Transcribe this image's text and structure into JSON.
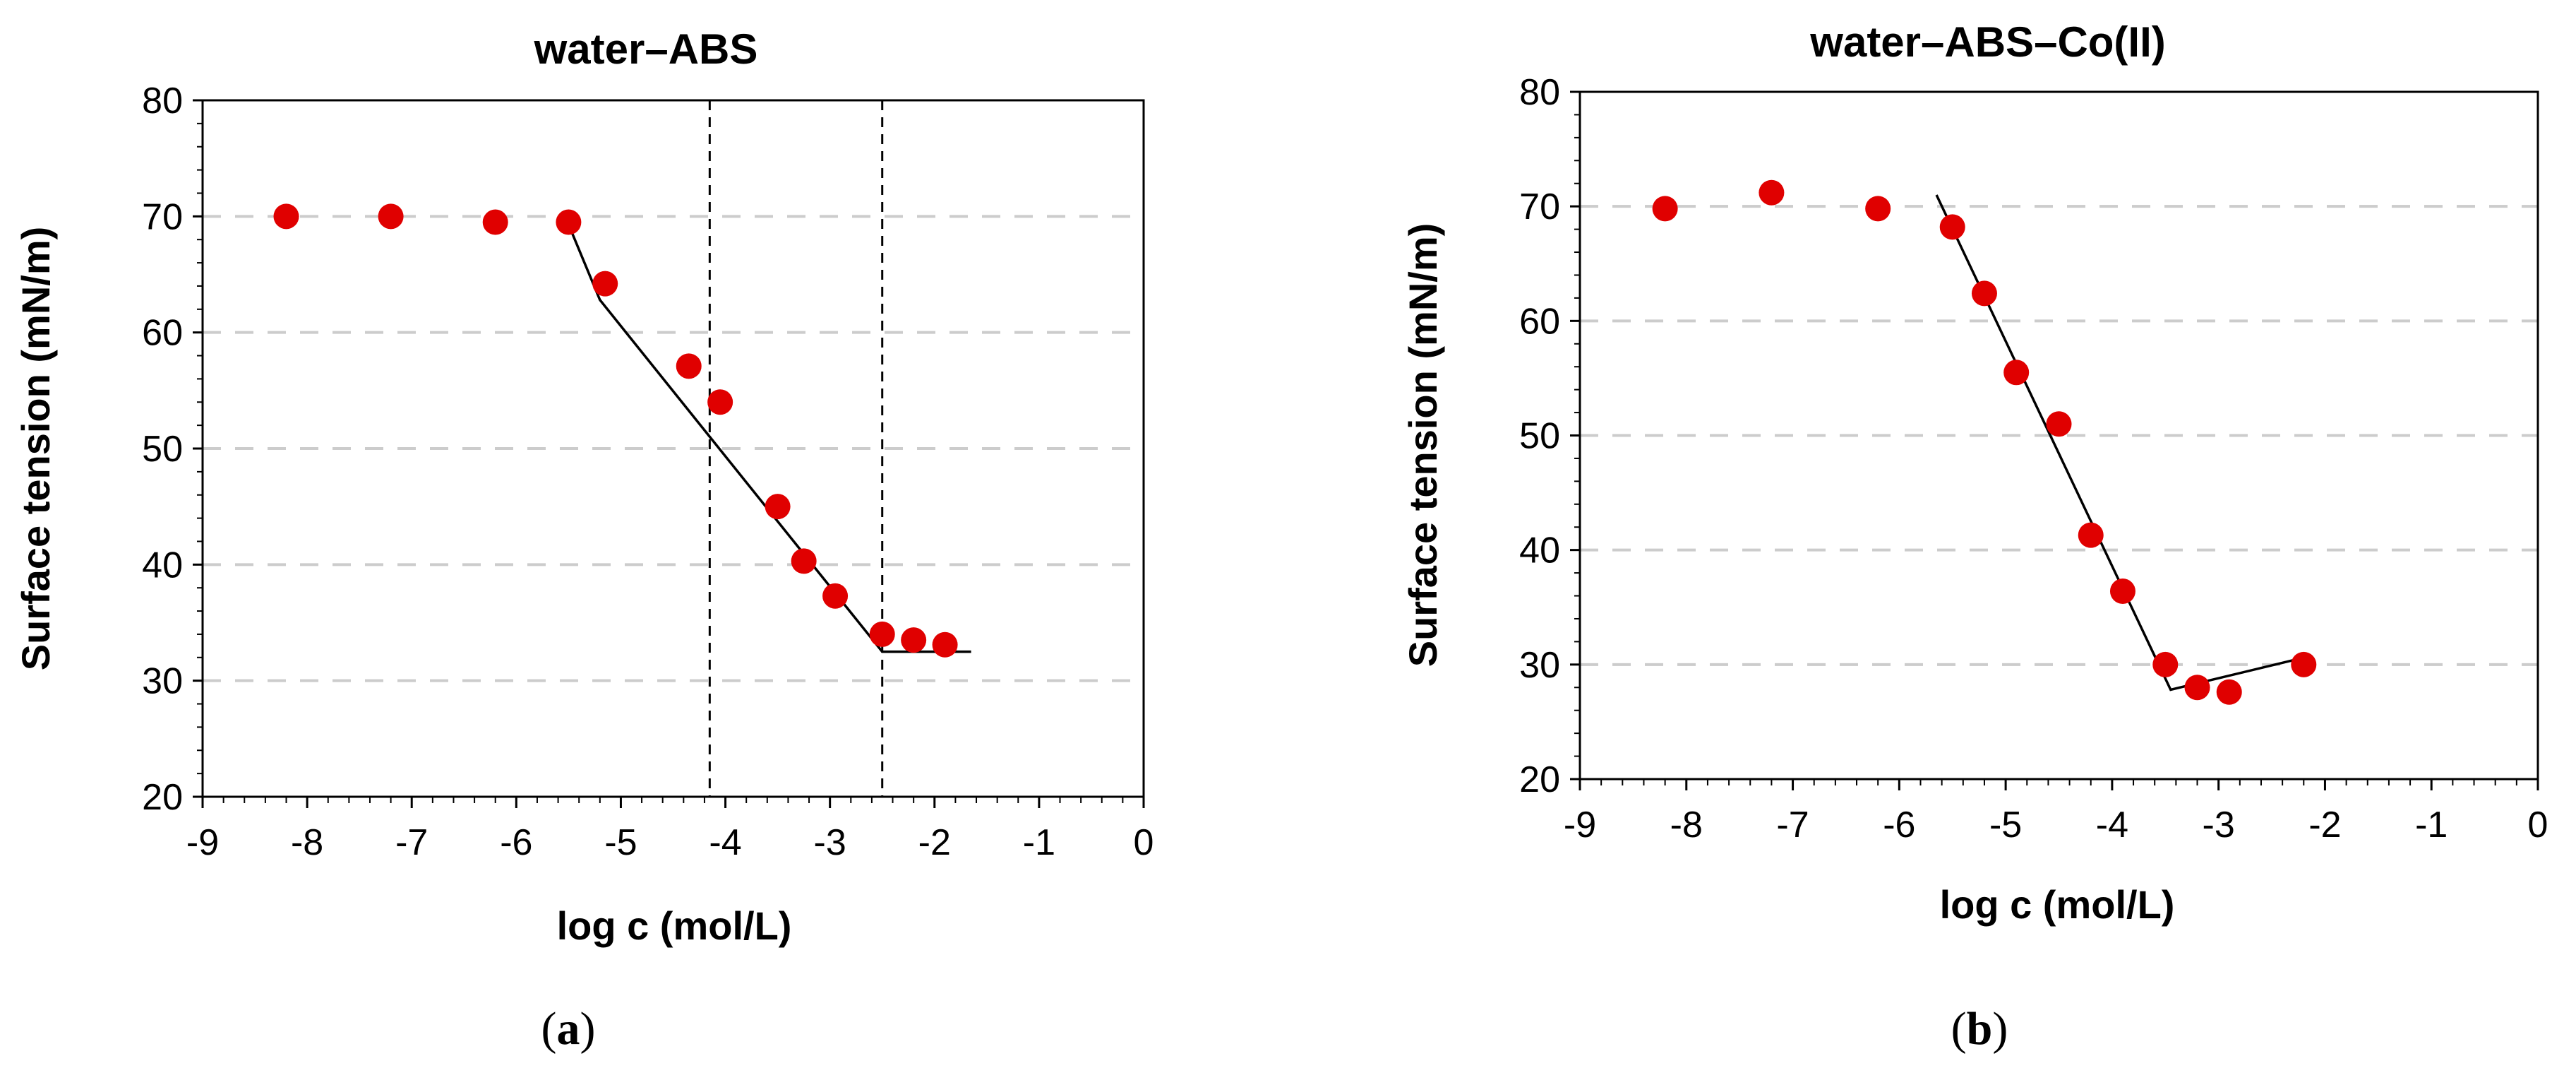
{
  "chart_data": [
    {
      "type": "scatter",
      "panel_label_prefix": "(",
      "panel_letter": "a",
      "panel_label_suffix": ")",
      "title": "water–ABS",
      "xlabel": "log c (mol/L)",
      "ylabel": "Surface tension (mN/m)",
      "xlim": [
        -9,
        0
      ],
      "ylim": [
        20,
        80
      ],
      "xticks": [
        -9,
        -8,
        -7,
        -6,
        -5,
        -4,
        -3,
        -2,
        -1,
        0
      ],
      "yticks": [
        20,
        30,
        40,
        50,
        60,
        70,
        80
      ],
      "grid": "horizontal dashed",
      "series": [
        {
          "points": [
            [
              -8.2,
              70.0
            ],
            [
              -7.2,
              70.0
            ],
            [
              -6.2,
              69.5
            ],
            [
              -5.5,
              69.5
            ],
            [
              -5.15,
              64.2
            ],
            [
              -4.35,
              57.1
            ],
            [
              -4.05,
              54.0
            ],
            [
              -3.5,
              45.0
            ],
            [
              -3.25,
              40.3
            ],
            [
              -2.95,
              37.3
            ],
            [
              -2.5,
              34.0
            ],
            [
              -2.2,
              33.5
            ],
            [
              -1.9,
              33.1
            ]
          ],
          "color": "#e00000"
        }
      ],
      "fit_lines": [
        [
          [
            -5.5,
            69.3
          ],
          [
            -5.2,
            62.8
          ],
          [
            -2.5,
            32.5
          ],
          [
            -1.65,
            32.5
          ]
        ]
      ],
      "vertical_lines": [
        -4.15,
        -2.5
      ]
    },
    {
      "type": "scatter",
      "panel_label_prefix": "(",
      "panel_letter": "b",
      "panel_label_suffix": ")",
      "title": "water–ABS–Co(II)",
      "xlabel": "log c (mol/L)",
      "ylabel": "Surface tension (mN/m)",
      "xlim": [
        -9,
        0
      ],
      "ylim": [
        20,
        80
      ],
      "xticks": [
        -9,
        -8,
        -7,
        -6,
        -5,
        -4,
        -3,
        -2,
        -1,
        0
      ],
      "yticks": [
        20,
        30,
        40,
        50,
        60,
        70,
        80
      ],
      "grid": "horizontal dashed",
      "series": [
        {
          "points": [
            [
              -8.2,
              69.8
            ],
            [
              -7.2,
              71.2
            ],
            [
              -6.2,
              69.8
            ],
            [
              -5.5,
              68.2
            ],
            [
              -5.2,
              62.4
            ],
            [
              -4.9,
              55.5
            ],
            [
              -4.5,
              51.0
            ],
            [
              -4.2,
              41.3
            ],
            [
              -3.9,
              36.4
            ],
            [
              -3.5,
              30.0
            ],
            [
              -3.2,
              28.0
            ],
            [
              -2.9,
              27.6
            ],
            [
              -2.2,
              30.0
            ]
          ],
          "color": "#e00000"
        }
      ],
      "fit_lines": [
        [
          [
            -5.65,
            71.0
          ],
          [
            -3.45,
            27.8
          ],
          [
            -2.2,
            30.6
          ]
        ]
      ],
      "vertical_lines": []
    }
  ]
}
